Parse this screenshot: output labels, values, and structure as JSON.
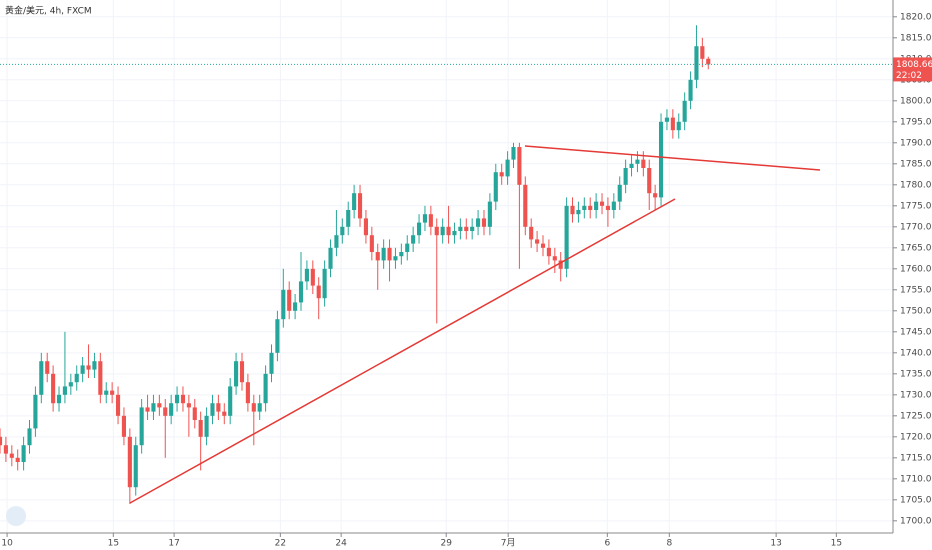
{
  "chart_data": {
    "type": "candlestick",
    "title": "黄金/美元, 4h, FXCM",
    "countdown": "22:02",
    "up_color": "#26a69a",
    "down_color": "#ef5350",
    "grid": true,
    "open": [
      1720,
      1718,
      1716,
      1715,
      1714,
      1718,
      1722,
      1730,
      1738,
      1735,
      1728,
      1730,
      1732,
      1733,
      1735,
      1737,
      1736,
      1738,
      1730,
      1731,
      1730,
      1725,
      1720,
      1708,
      1718,
      1727,
      1726,
      1728,
      1727,
      1725,
      1728,
      1730,
      1728,
      1727,
      1724,
      1720,
      1725,
      1728,
      1726,
      1725,
      1732,
      1738,
      1733,
      1728,
      1726,
      1728,
      1735,
      1740,
      1748,
      1755,
      1750,
      1752,
      1757,
      1760,
      1756,
      1753,
      1760,
      1765,
      1768,
      1770,
      1774,
      1778,
      1772,
      1768,
      1764,
      1762,
      1765,
      1762,
      1763,
      1764,
      1766,
      1768,
      1771,
      1773,
      1770,
      1768,
      1770,
      1768,
      1769,
      1770,
      1769,
      1770,
      1772,
      1770,
      1776,
      1783,
      1782,
      1786,
      1789,
      1780,
      1770,
      1767,
      1766,
      1765,
      1763,
      1762,
      1760,
      1775,
      1773,
      1774,
      1775,
      1774,
      1776,
      1775,
      1774,
      1776,
      1780,
      1784,
      1785,
      1786,
      1784,
      1778,
      1777,
      1795,
      1796,
      1793,
      1795,
      1800,
      1805,
      1813,
      1810
    ],
    "high": [
      1722,
      1720,
      1718,
      1717,
      1720,
      1724,
      1732,
      1740,
      1740,
      1737,
      1732,
      1745,
      1735,
      1737,
      1739,
      1742,
      1740,
      1740,
      1733,
      1733,
      1732,
      1727,
      1722,
      1720,
      1729,
      1730,
      1730,
      1730,
      1729,
      1730,
      1732,
      1732,
      1730,
      1729,
      1726,
      1727,
      1730,
      1730,
      1728,
      1734,
      1740,
      1740,
      1735,
      1730,
      1730,
      1737,
      1742,
      1750,
      1760,
      1757,
      1754,
      1764,
      1762,
      1762,
      1758,
      1762,
      1767,
      1774,
      1772,
      1776,
      1780,
      1780,
      1774,
      1770,
      1766,
      1767,
      1767,
      1765,
      1766,
      1768,
      1770,
      1773,
      1775,
      1775,
      1772,
      1772,
      1775,
      1771,
      1772,
      1772,
      1772,
      1774,
      1774,
      1778,
      1785,
      1785,
      1788,
      1790,
      1790,
      1782,
      1772,
      1769,
      1768,
      1767,
      1765,
      1764,
      1777,
      1777,
      1776,
      1777,
      1777,
      1778,
      1778,
      1777,
      1778,
      1782,
      1786,
      1787,
      1788,
      1788,
      1786,
      1780,
      1797,
      1798,
      1798,
      1797,
      1802,
      1807,
      1818,
      1815,
      1810.5
    ],
    "low": [
      1716,
      1714,
      1713,
      1712,
      1712,
      1716,
      1720,
      1728,
      1733,
      1726,
      1726,
      1728,
      1730,
      1731,
      1733,
      1734,
      1734,
      1728,
      1728,
      1728,
      1723,
      1718,
      1704,
      1706,
      1716,
      1724,
      1724,
      1725,
      1715,
      1723,
      1726,
      1726,
      1720,
      1722,
      1712,
      1718,
      1723,
      1724,
      1723,
      1723,
      1730,
      1731,
      1726,
      1718,
      1724,
      1726,
      1733,
      1738,
      1746,
      1748,
      1748,
      1750,
      1755,
      1754,
      1748,
      1751,
      1758,
      1763,
      1766,
      1768,
      1772,
      1770,
      1766,
      1762,
      1755,
      1760,
      1757,
      1760,
      1761,
      1762,
      1764,
      1766,
      1769,
      1768,
      1747,
      1766,
      1766,
      1766,
      1767,
      1767,
      1767,
      1768,
      1768,
      1768,
      1774,
      1780,
      1780,
      1784,
      1760,
      1768,
      1765,
      1764,
      1763,
      1761,
      1759,
      1757,
      1758,
      1771,
      1771,
      1772,
      1772,
      1772,
      1773,
      1770,
      1772,
      1774,
      1778,
      1782,
      1783,
      1782,
      1774,
      1774,
      1775,
      1793,
      1791,
      1791,
      1793,
      1798,
      1803,
      1808,
      1807.5
    ],
    "close": [
      1718,
      1716,
      1715,
      1714,
      1718,
      1722,
      1730,
      1738,
      1735,
      1728,
      1730,
      1732,
      1733,
      1735,
      1737,
      1736,
      1738,
      1730,
      1731,
      1730,
      1725,
      1720,
      1708,
      1718,
      1727,
      1726,
      1728,
      1727,
      1725,
      1728,
      1730,
      1728,
      1727,
      1724,
      1720,
      1725,
      1728,
      1726,
      1725,
      1732,
      1738,
      1733,
      1728,
      1726,
      1728,
      1735,
      1740,
      1748,
      1755,
      1750,
      1752,
      1757,
      1760,
      1756,
      1753,
      1760,
      1765,
      1768,
      1770,
      1774,
      1778,
      1772,
      1768,
      1764,
      1762,
      1765,
      1762,
      1763,
      1764,
      1766,
      1768,
      1771,
      1773,
      1770,
      1768,
      1770,
      1768,
      1769,
      1770,
      1769,
      1770,
      1772,
      1770,
      1776,
      1783,
      1782,
      1786,
      1789,
      1780,
      1770,
      1767,
      1766,
      1765,
      1763,
      1762,
      1760,
      1775,
      1773,
      1774,
      1775,
      1774,
      1776,
      1775,
      1774,
      1776,
      1780,
      1784,
      1785,
      1786,
      1784,
      1778,
      1777,
      1795,
      1796,
      1793,
      1795,
      1800,
      1805,
      1813,
      1810,
      1808.66
    ],
    "xlim": [
      0,
      151.3
    ],
    "xticks": [
      {
        "value": 1.2,
        "label": "10"
      },
      {
        "value": 19.2,
        "label": "15"
      },
      {
        "value": 29.5,
        "label": "17"
      },
      {
        "value": 47.5,
        "label": "22"
      },
      {
        "value": 57.8,
        "label": "24"
      },
      {
        "value": 75.6,
        "label": "29"
      },
      {
        "value": 86.1,
        "label": "7月"
      },
      {
        "value": 102.9,
        "label": "6"
      },
      {
        "value": 113.4,
        "label": "8"
      },
      {
        "value": 131.5,
        "label": "13"
      },
      {
        "value": 141.7,
        "label": "15"
      }
    ],
    "ylim": [
      1697.1,
      1824.0
    ],
    "yticks": [
      {
        "value": 1700,
        "label": "1700.00"
      },
      {
        "value": 1705,
        "label": "1705.00"
      },
      {
        "value": 1710,
        "label": "1710.00"
      },
      {
        "value": 1715,
        "label": "1715.00"
      },
      {
        "value": 1720,
        "label": "1720.00"
      },
      {
        "value": 1725,
        "label": "1725.00"
      },
      {
        "value": 1730,
        "label": "1730.00"
      },
      {
        "value": 1735,
        "label": "1735.00"
      },
      {
        "value": 1740,
        "label": "1740.00"
      },
      {
        "value": 1745,
        "label": "1745.00"
      },
      {
        "value": 1750,
        "label": "1750.00"
      },
      {
        "value": 1755,
        "label": "1755.00"
      },
      {
        "value": 1760,
        "label": "1760.00"
      },
      {
        "value": 1765,
        "label": "1765.00"
      },
      {
        "value": 1770,
        "label": "1770.00"
      },
      {
        "value": 1775,
        "label": "1775.00"
      },
      {
        "value": 1780,
        "label": "1780.00"
      },
      {
        "value": 1785,
        "label": "1785.00"
      },
      {
        "value": 1790,
        "label": "1790.00"
      },
      {
        "value": 1795,
        "label": "1795.00"
      },
      {
        "value": 1800,
        "label": "1800.00"
      },
      {
        "value": 1805,
        "label": "1805.00"
      },
      {
        "value": 1810,
        "label": "1810.00"
      },
      {
        "value": 1815,
        "label": "1815.00"
      },
      {
        "value": 1820,
        "label": "1820.00"
      }
    ]
  }
}
